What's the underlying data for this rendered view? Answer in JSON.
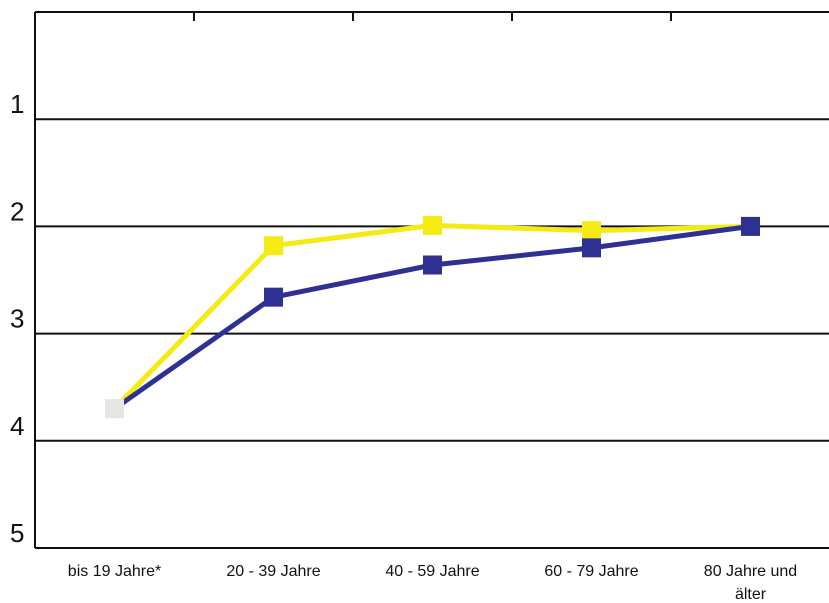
{
  "chart_data": {
    "type": "line",
    "title": "",
    "xlabel": "",
    "ylabel": "",
    "categories": [
      "bis 19 Jahre*",
      "20 - 39 Jahre",
      "40 - 59 Jahre",
      "60 - 79 Jahre",
      "80 Jahre und älter"
    ],
    "category_lines": [
      [
        "bis 19 Jahre*"
      ],
      [
        "20 - 39 Jahre"
      ],
      [
        "40 - 59 Jahre"
      ],
      [
        "60 - 79 Jahre"
      ],
      [
        "80 Jahre und",
        "älter"
      ]
    ],
    "y_ticks": [
      "1",
      "2",
      "3",
      "4",
      "5"
    ],
    "ylim": [
      0,
      5
    ],
    "y_inverted": true,
    "grid": true,
    "series": [
      {
        "color": "#f5ea14",
        "values": [
          3.7,
          2.18,
          1.99,
          2.04,
          2.0
        ]
      },
      {
        "color": "#2e3192",
        "values": [
          3.7,
          2.66,
          2.36,
          2.2,
          2.0
        ]
      }
    ],
    "first_point_color": "#e6e6e6"
  }
}
